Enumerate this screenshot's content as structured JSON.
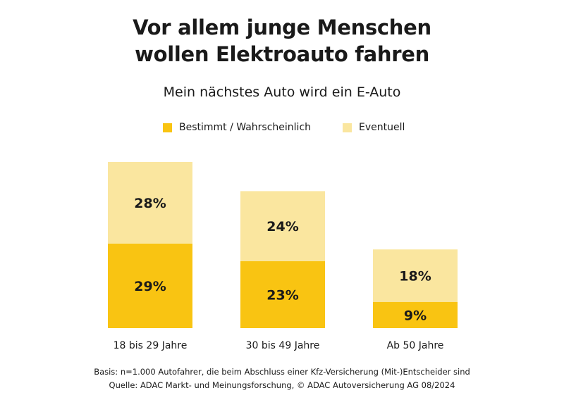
{
  "title_lines": [
    "Vor allem junge Menschen",
    "wollen Elektroauto fahren"
  ],
  "subtitle": "Mein nächstes Auto wird ein E-Auto",
  "colors": {
    "bestimmt": "#f9c412",
    "eventuell": "#fae69f",
    "text": "#1a1a1a"
  },
  "chart_data": {
    "type": "bar",
    "stacked": true,
    "categories": [
      "18 bis 29 Jahre",
      "30 bis 49 Jahre",
      "Ab 50 Jahre"
    ],
    "series": [
      {
        "name": "Bestimmt / Wahrscheinlich",
        "values": [
          29,
          23,
          9
        ],
        "labels": [
          "29%",
          "23%",
          "9%"
        ]
      },
      {
        "name": "Eventuell",
        "values": [
          28,
          24,
          18
        ],
        "labels": [
          "28%",
          "24%",
          "18%"
        ]
      }
    ],
    "unit": "%",
    "legend": "top",
    "grid": false
  },
  "footnotes": [
    "Basis: n=1.000 Autofahrer, die beim Abschluss einer Kfz-Versicherung (Mit-)Entscheider sind",
    "Quelle: ADAC Markt- und Meinungsforschung, © ADAC Autoversicherung AG 08/2024"
  ]
}
